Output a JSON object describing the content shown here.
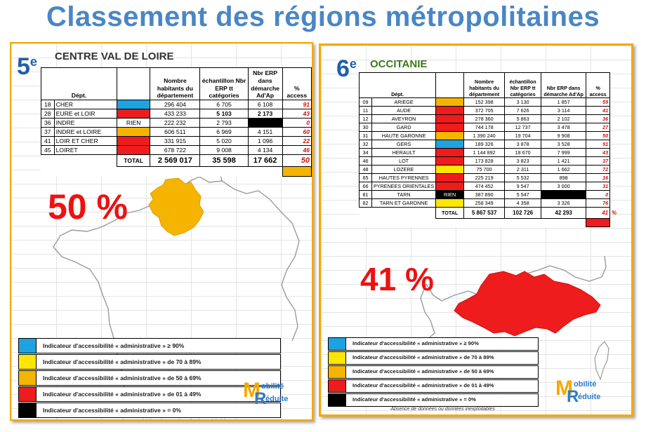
{
  "title": "Classement des régions métropolitaines",
  "colors": {
    "blue": "#1ea3e0",
    "yellow": "#ffe600",
    "orange": "#f5b400",
    "red": "#ee1c1c",
    "black": "#000000",
    "rank": "#1f5fa8",
    "title": "#4a86c5",
    "border": "#f5a800"
  },
  "left": {
    "rank_num": "5",
    "rank_sup": "e",
    "region": "CENTRE VAL DE LOIRE",
    "headers": [
      "Dépt.",
      "",
      "Nombre habitants du département",
      "échantillon Nbr ERP tt catégories",
      "Nbr ERP dans démarche Ad'Ap",
      "% access"
    ],
    "rows": [
      {
        "code": "18",
        "name": "CHER",
        "color": "blue",
        "habitants": "296 404",
        "echantillon": "6 705",
        "nbr_erp": "6 108",
        "pct": "91"
      },
      {
        "code": "28",
        "name": "EURE et LOIR",
        "color": "red",
        "habitants": "433 233",
        "echantillon": "5 103",
        "nbr_erp": "2 173",
        "pct": "43"
      },
      {
        "code": "36",
        "name": "INDRE",
        "color": "none",
        "color_label": "RIEN",
        "habitants": "222 232",
        "echantillon": "2 793",
        "nbr_erp": "",
        "pct": "0"
      },
      {
        "code": "37",
        "name": "INDRE et LOIRE",
        "color": "orange",
        "habitants": "606 511",
        "echantillon": "6 969",
        "nbr_erp": "4 151",
        "pct": "60"
      },
      {
        "code": "41",
        "name": "LOIR ET CHER",
        "color": "red",
        "habitants": "331 915",
        "echantillon": "5 020",
        "nbr_erp": "1 096",
        "pct": "22"
      },
      {
        "code": "45",
        "name": "LOIRET",
        "color": "red",
        "habitants": "678 722",
        "echantillon": "9 008",
        "nbr_erp": "4 134",
        "pct": "46"
      }
    ],
    "total": {
      "label": "TOTAL",
      "habitants": "2 569 017",
      "echantillon": "35 598",
      "nbr_erp": "17 662",
      "pct": "50",
      "pct_sign": "%"
    },
    "big_pct": "50 %",
    "region_color": "orange"
  },
  "right": {
    "rank_num": "6",
    "rank_sup": "e",
    "region": "OCCITANIE",
    "headers": [
      "Dépt.",
      "",
      "Nombre habitants du département",
      "échantillon Nbr ERP tt catégories",
      "Nbr ERP dans démarche Ad'Ap",
      "% access"
    ],
    "rows": [
      {
        "code": "09",
        "name": "ARIEGE",
        "color": "orange",
        "habitants": "152 398",
        "echantillon": "3 130",
        "nbr_erp": "1 857",
        "pct": "59"
      },
      {
        "code": "11",
        "name": "AUDE",
        "color": "red",
        "habitants": "372 705",
        "echantillon": "7 626",
        "nbr_erp": "3 114",
        "pct": "41"
      },
      {
        "code": "12",
        "name": "AVEYRON",
        "color": "red",
        "habitants": "278 360",
        "echantillon": "5 863",
        "nbr_erp": "2 102",
        "pct": "36"
      },
      {
        "code": "30",
        "name": "GARD",
        "color": "red",
        "habitants": "744 178",
        "echantillon": "12 737",
        "nbr_erp": "3 478",
        "pct": "27"
      },
      {
        "code": "31",
        "name": "HAUTE GARONNE",
        "color": "orange",
        "habitants": "1 390 240",
        "echantillon": "19 704",
        "nbr_erp": "9 908",
        "pct": "50"
      },
      {
        "code": "32",
        "name": "GERS",
        "color": "blue",
        "habitants": "189 326",
        "echantillon": "3 878",
        "nbr_erp": "3 528",
        "pct": "91"
      },
      {
        "code": "34",
        "name": "HERAULT",
        "color": "red",
        "habitants": "1 144 892",
        "echantillon": "18 670",
        "nbr_erp": "7 999",
        "pct": "43"
      },
      {
        "code": "46",
        "name": "LOT",
        "color": "red",
        "habitants": "173 828",
        "echantillon": "3 823",
        "nbr_erp": "1 421",
        "pct": "37"
      },
      {
        "code": "48",
        "name": "LOZERE",
        "color": "yellow",
        "habitants": "75 700",
        "echantillon": "2 311",
        "nbr_erp": "1 662",
        "pct": "72"
      },
      {
        "code": "65",
        "name": "HAUTES PYRENNES",
        "color": "red",
        "habitants": "225 219",
        "echantillon": "5 532",
        "nbr_erp": "898",
        "pct": "16"
      },
      {
        "code": "66",
        "name": "PYRENEES ORIENTALES",
        "color": "red",
        "habitants": "474 452",
        "echantillon": "9 547",
        "nbr_erp": "3 000",
        "pct": "31"
      },
      {
        "code": "81",
        "name": "TARN",
        "color": "black",
        "color_label": "RIEN",
        "habitants": "387 890",
        "echantillon": "5 547",
        "nbr_erp": "",
        "pct": "0"
      },
      {
        "code": "82",
        "name": "TARN ET GARONNE",
        "color": "yellow",
        "habitants": "258 349",
        "echantillon": "4 358",
        "nbr_erp": "3 326",
        "pct": "76"
      }
    ],
    "total": {
      "label": "TOTAL",
      "habitants": "5 867 537",
      "echantillon": "102 726",
      "nbr_erp": "42 293",
      "pct": "41",
      "pct_sign": "%"
    },
    "big_pct": "41 %",
    "region_color": "red"
  },
  "legend": {
    "items": [
      {
        "color": "blue",
        "label": "Indicateur d'accessibilité « administrative » ≥ 90%"
      },
      {
        "color": "yellow",
        "label": "Indicateur d'accessibilité « administrative » de 70 à 89%"
      },
      {
        "color": "orange",
        "label": "Indicateur d'accessibilité « administrative » de 50 à 69%"
      },
      {
        "color": "red",
        "label": "Indicateur d'accessibilité « administrative » de 01 à 49%"
      },
      {
        "color": "black",
        "label": "Indicateur d'accessibilité « administrative » = 0%"
      }
    ],
    "note": "Absence de données ou données inexploitables"
  },
  "logo": {
    "m": "M",
    "r": "R",
    "line1": "obilité",
    "line2": "éduite"
  }
}
